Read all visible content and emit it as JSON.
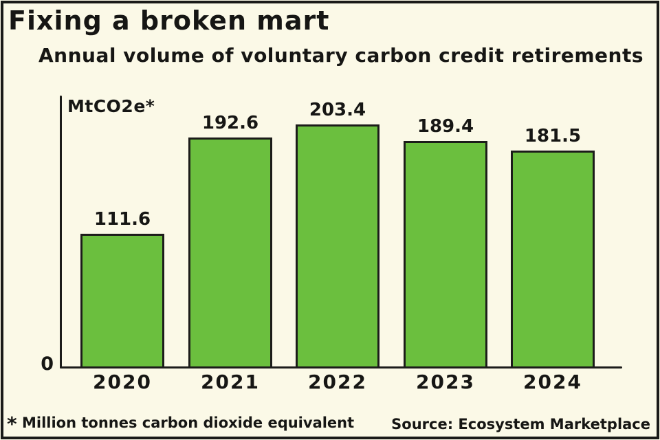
{
  "title": "Fixing a broken mart",
  "subtitle": "Annual volume of voluntary carbon credit retirements",
  "chart_data": {
    "type": "bar",
    "categories": [
      "2020",
      "2021",
      "2022",
      "2023",
      "2024"
    ],
    "values": [
      111.6,
      192.6,
      203.4,
      189.4,
      181.5
    ],
    "title": "Fixing a broken mart",
    "subtitle": "Annual volume of voluntary carbon credit retirements",
    "ylabel": "MtCO2e*",
    "xlabel": "",
    "ylim": [
      0,
      227
    ],
    "origin_tick_label": "0",
    "grid": false,
    "legend": false,
    "value_labels_shown": true,
    "bar_color": "#6bbf3e",
    "line_color": "#1c1c1a",
    "background_color": "#fbf9e7"
  },
  "footnote": {
    "marker": "*",
    "text": "Million tonnes carbon dioxide equivalent"
  },
  "source": "Source: Ecosystem Marketplace"
}
